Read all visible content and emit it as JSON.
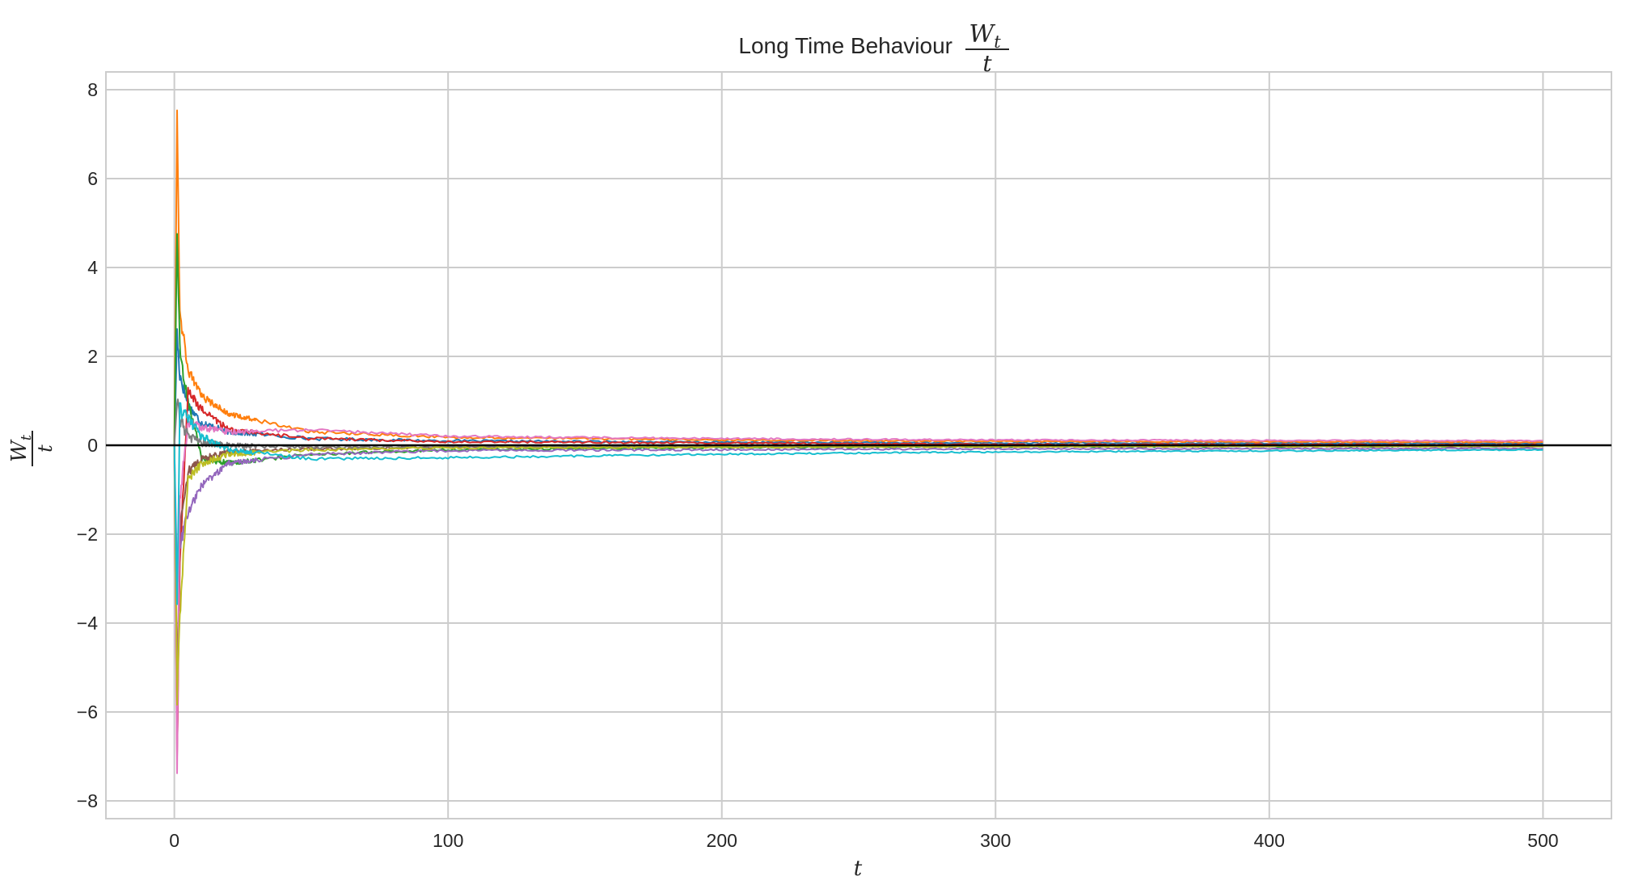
{
  "chart_data": {
    "type": "line",
    "title": {
      "text": "Long Time Behaviour",
      "formula_numerator": "W",
      "formula_subscript": "t",
      "formula_denominator": "t"
    },
    "xlabel": "t",
    "ylabel": {
      "numerator": "W",
      "subscript": "t",
      "denominator": "t"
    },
    "xlim": [
      -25,
      525
    ],
    "ylim": [
      -8.4,
      8.4
    ],
    "x_ticks": [
      0,
      100,
      200,
      300,
      400,
      500
    ],
    "x_tick_labels": [
      "0",
      "100",
      "200",
      "300",
      "400",
      "500"
    ],
    "y_ticks": [
      -8,
      -6,
      -4,
      -2,
      0,
      2,
      4,
      6,
      8
    ],
    "y_tick_labels": [
      "−8",
      "−6",
      "−4",
      "−2",
      "0",
      "2",
      "4",
      "6",
      "8"
    ],
    "grid": true,
    "reference_line": {
      "y": 0,
      "color": "#000000"
    },
    "x_range": [
      0,
      500
    ],
    "series_colors": [
      "#1f77b4",
      "#ff7f0e",
      "#2ca02c",
      "#d62728",
      "#9467bd",
      "#8c564b",
      "#e377c2",
      "#7f7f7f",
      "#bcbd22",
      "#17becf"
    ],
    "series": [
      {
        "color": "#1f77b4",
        "x": [
          0,
          1,
          2,
          5,
          10,
          20,
          50,
          100,
          200,
          300,
          500
        ],
        "y": [
          0,
          2.5,
          1.6,
          0.9,
          0.5,
          0.3,
          0.15,
          0.1,
          0.07,
          0.05,
          0.04
        ]
      },
      {
        "color": "#ff7f0e",
        "x": [
          0,
          1,
          2,
          5,
          10,
          20,
          50,
          100,
          200,
          300,
          500
        ],
        "y": [
          0,
          7.6,
          3.0,
          1.7,
          1.1,
          0.7,
          0.3,
          0.18,
          0.12,
          0.09,
          0.07
        ]
      },
      {
        "color": "#2ca02c",
        "x": [
          0,
          1,
          2,
          5,
          10,
          20,
          50,
          100,
          200,
          300,
          500
        ],
        "y": [
          0,
          5.0,
          2.1,
          1.0,
          -0.3,
          -0.4,
          -0.2,
          -0.1,
          -0.05,
          -0.03,
          -0.02
        ]
      },
      {
        "color": "#d62728",
        "x": [
          0,
          1,
          2,
          5,
          10,
          20,
          50,
          100,
          200,
          300,
          500
        ],
        "y": [
          0,
          -7.1,
          -2.6,
          1.2,
          0.8,
          0.35,
          0.15,
          0.08,
          0.05,
          0.02,
          0.01
        ]
      },
      {
        "color": "#9467bd",
        "x": [
          0,
          1,
          2,
          5,
          10,
          20,
          50,
          100,
          200,
          300,
          500
        ],
        "y": [
          0,
          -3.0,
          -2.3,
          -1.5,
          -0.9,
          -0.4,
          -0.2,
          -0.12,
          -0.1,
          -0.08,
          -0.07
        ]
      },
      {
        "color": "#8c564b",
        "x": [
          0,
          1,
          2,
          5,
          10,
          20,
          50,
          100,
          200,
          300,
          500
        ],
        "y": [
          0,
          -5.7,
          -1.8,
          -0.6,
          -0.3,
          -0.15,
          -0.08,
          -0.04,
          -0.03,
          -0.02,
          -0.02
        ]
      },
      {
        "color": "#e377c2",
        "x": [
          0,
          1,
          2,
          5,
          10,
          20,
          50,
          100,
          200,
          300,
          500
        ],
        "y": [
          0,
          -7.5,
          -1.2,
          0.5,
          0.4,
          0.3,
          0.35,
          0.2,
          0.15,
          0.12,
          0.1
        ]
      },
      {
        "color": "#7f7f7f",
        "x": [
          0,
          1,
          2,
          5,
          10,
          20,
          50,
          100,
          200,
          300,
          500
        ],
        "y": [
          0,
          1.0,
          0.6,
          0.2,
          0.05,
          0.0,
          -0.05,
          -0.03,
          -0.02,
          -0.01,
          0.0
        ]
      },
      {
        "color": "#bcbd22",
        "x": [
          0,
          1,
          2,
          5,
          10,
          20,
          50,
          100,
          200,
          300,
          500
        ],
        "y": [
          0,
          -5.6,
          -3.8,
          -0.8,
          -0.4,
          -0.2,
          -0.1,
          -0.06,
          -0.04,
          -0.03,
          -0.02
        ]
      },
      {
        "color": "#17becf",
        "x": [
          0,
          1,
          2,
          5,
          10,
          20,
          50,
          100,
          200,
          300,
          500
        ],
        "y": [
          0,
          -3.7,
          0.8,
          0.6,
          0.2,
          -0.1,
          -0.3,
          -0.28,
          -0.2,
          -0.15,
          -0.1
        ]
      }
    ]
  }
}
